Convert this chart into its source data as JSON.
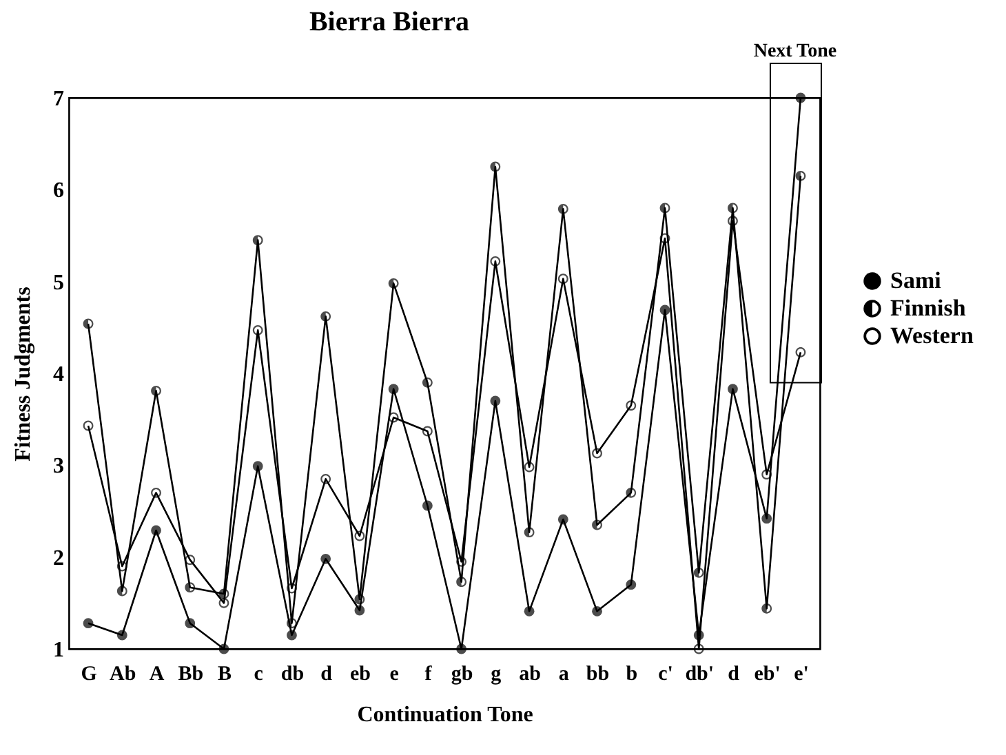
{
  "chart_data": {
    "type": "line",
    "title": "Bierra Bierra",
    "xlabel": "Continuation Tone",
    "ylabel": "Fitness Judgments",
    "categories": [
      "G",
      "Ab",
      "A",
      "Bb",
      "B",
      "c",
      "db",
      "d",
      "eb",
      "e",
      "f",
      "gb",
      "g",
      "ab",
      "a",
      "bb",
      "b",
      "c'",
      "db'",
      "d",
      "eb'",
      "e'"
    ],
    "series": [
      {
        "name": "Sami",
        "color": "#000000",
        "values": [
          1.28,
          1.15,
          2.29,
          1.28,
          1.0,
          2.99,
          1.15,
          1.98,
          1.42,
          3.83,
          2.56,
          1.0,
          3.7,
          1.41,
          2.41,
          1.41,
          1.7,
          4.69,
          1.15,
          3.83,
          2.42,
          7.0
        ]
      },
      {
        "name": "Finnish",
        "color": "#000000",
        "values": [
          4.54,
          1.63,
          3.81,
          1.67,
          1.6,
          5.45,
          1.28,
          4.62,
          1.54,
          4.98,
          3.9,
          1.73,
          6.25,
          2.27,
          5.79,
          2.35,
          2.7,
          5.8,
          1.83,
          5.8,
          1.44,
          6.15
        ]
      },
      {
        "name": "Western",
        "color": "#000000",
        "values": [
          3.43,
          1.9,
          2.7,
          1.97,
          1.5,
          4.47,
          1.66,
          2.85,
          2.23,
          3.52,
          3.37,
          1.95,
          5.22,
          2.98,
          5.03,
          3.13,
          3.65,
          5.47,
          1.0,
          5.66,
          2.9,
          4.23
        ]
      }
    ],
    "ylim": [
      1,
      7
    ],
    "yticks": [
      1,
      2,
      3,
      4,
      5,
      6,
      7
    ],
    "grid": false,
    "legend": "right",
    "marker": "circle",
    "line_style": "solid",
    "annotations": [
      "Next Tone"
    ]
  }
}
